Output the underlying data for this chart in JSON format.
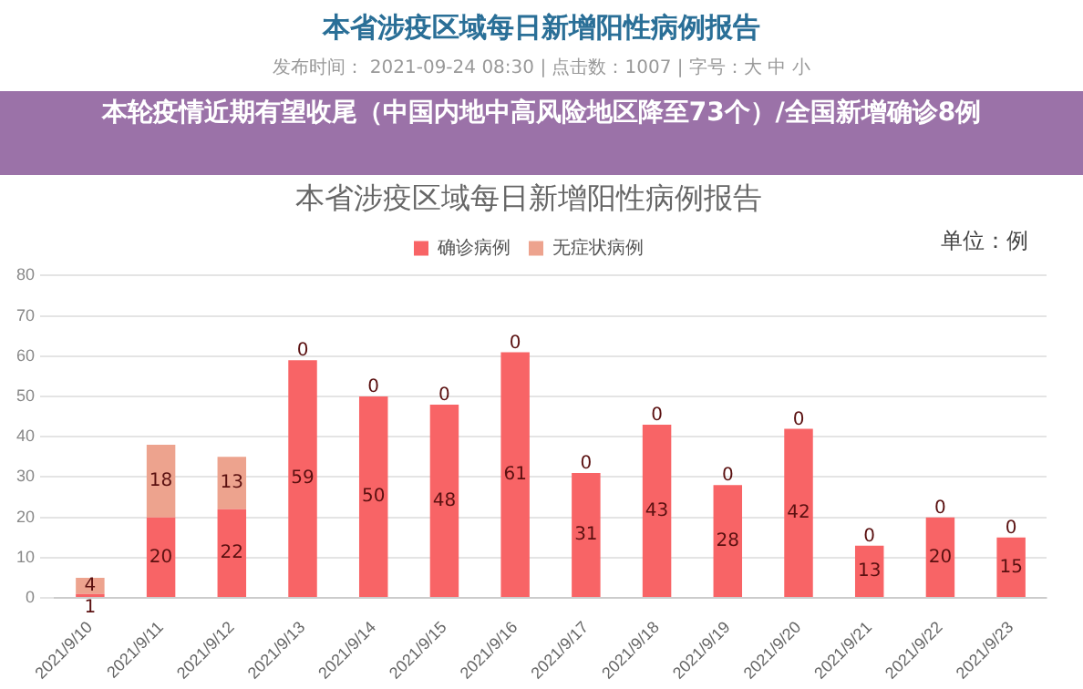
{
  "chart_data": {
    "type": "bar",
    "title": "本省涉疫区域每日新增阳性病例报告",
    "annotations": [
      "本省涉疫区域每日新增阳性病例报告",
      "发布时间： 2021-09-24 08:30 | 点击数：1007 | 字号：大 中 小",
      "本轮疫情近期有望收尾（中国内地中高风险地区降至73个）/全国新增确诊8例",
      "单位：例"
    ],
    "categories": [
      "2021/9/10",
      "2021/9/11",
      "2021/9/12",
      "2021/9/13",
      "2021/9/14",
      "2021/9/15",
      "2021/9/16",
      "2021/9/17",
      "2021/9/18",
      "2021/9/19",
      "2021/9/20",
      "2021/9/21",
      "2021/9/22",
      "2021/9/23"
    ],
    "series": [
      {
        "name": "确诊病例",
        "color": "#f86466",
        "values": [
          1,
          20,
          22,
          59,
          50,
          48,
          61,
          31,
          43,
          28,
          42,
          13,
          20,
          15
        ]
      },
      {
        "name": "无症状病例",
        "color": "#eda38e",
        "values": [
          4,
          18,
          13,
          0,
          0,
          0,
          0,
          0,
          0,
          0,
          0,
          0,
          0,
          0
        ]
      }
    ],
    "stacked": true,
    "ylim": [
      0,
      80
    ],
    "yticks": [
      0,
      10,
      20,
      30,
      40,
      50,
      60,
      70,
      80
    ],
    "grid": "y",
    "legend": "top",
    "data_labels": true
  }
}
